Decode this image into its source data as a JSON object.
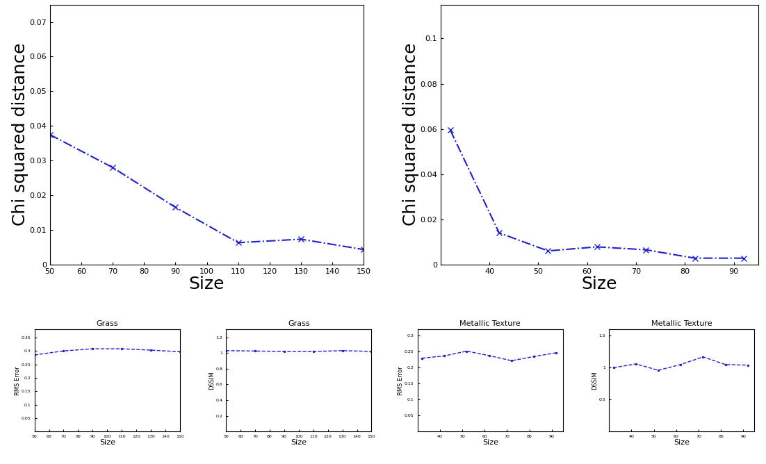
{
  "chart_data": [
    {
      "type": "line",
      "x_label": "Size",
      "y_label": "Chi squared distance",
      "x": [
        50,
        70,
        90,
        110,
        130,
        150
      ],
      "values": [
        0.0375,
        0.028,
        0.0165,
        0.0063,
        0.0073,
        0.0043
      ],
      "xlim": [
        50,
        150
      ],
      "ylim": [
        0,
        0.075
      ],
      "xticks": [
        50,
        60,
        70,
        80,
        90,
        100,
        110,
        120,
        130,
        140,
        150
      ],
      "yticks": [
        0,
        0.01,
        0.02,
        0.03,
        0.04,
        0.05,
        0.06,
        0.07
      ],
      "color": "#1f1fcc",
      "marker": "x",
      "line_style": "dashdot"
    },
    {
      "type": "line",
      "x_label": "Size",
      "y_label": "Chi squared distance",
      "x": [
        32,
        42,
        52,
        62,
        72,
        82,
        92
      ],
      "values": [
        0.0595,
        0.014,
        0.006,
        0.0078,
        0.0065,
        0.0028,
        0.0028
      ],
      "xlim": [
        30,
        95
      ],
      "ylim": [
        0,
        0.115
      ],
      "xticks": [
        40,
        50,
        60,
        70,
        80,
        90
      ],
      "yticks": [
        0,
        0.02,
        0.04,
        0.06,
        0.08,
        0.1
      ],
      "color": "#1f1fcc",
      "marker": "x",
      "line_style": "dashdot"
    },
    {
      "type": "line",
      "title": "Grass",
      "x_label": "Size",
      "y_label": "RMS Error",
      "x": [
        50,
        70,
        90,
        110,
        130,
        150
      ],
      "values": [
        0.285,
        0.3,
        0.308,
        0.308,
        0.303,
        0.297
      ],
      "xlim": [
        50,
        150
      ],
      "ylim": [
        0,
        0.38
      ],
      "xticks": [
        50,
        60,
        70,
        80,
        90,
        100,
        110,
        120,
        130,
        140,
        150
      ],
      "yticks": [
        0.05,
        0.1,
        0.15,
        0.2,
        0.25,
        0.3,
        0.35
      ],
      "color": "#1f1fcc",
      "marker": "point",
      "line_style": "dashed"
    },
    {
      "type": "line",
      "title": "Grass",
      "x_label": "Size",
      "y_label": "DSSIM",
      "x": [
        50,
        70,
        90,
        110,
        130,
        150
      ],
      "values": [
        1.03,
        1.025,
        1.02,
        1.02,
        1.03,
        1.02
      ],
      "xlim": [
        50,
        150
      ],
      "ylim": [
        0,
        1.3
      ],
      "xticks": [
        50,
        60,
        70,
        80,
        90,
        100,
        110,
        120,
        130,
        140,
        150
      ],
      "yticks": [
        0.2,
        0.4,
        0.6,
        0.8,
        1,
        1.2
      ],
      "color": "#1f1fcc",
      "marker": "point",
      "line_style": "dashed"
    },
    {
      "type": "line",
      "title": "Metallic Texture",
      "x_label": "Size",
      "y_label": "RMS Error",
      "x": [
        32,
        42,
        52,
        62,
        72,
        82,
        92
      ],
      "values": [
        0.23,
        0.237,
        0.252,
        0.238,
        0.222,
        0.235,
        0.247
      ],
      "xlim": [
        30,
        95
      ],
      "ylim": [
        0,
        0.32
      ],
      "xticks": [
        40,
        50,
        60,
        70,
        80,
        90
      ],
      "yticks": [
        0.05,
        0.1,
        0.15,
        0.2,
        0.25,
        0.3
      ],
      "color": "#1f1fcc",
      "marker": "point",
      "line_style": "dashed"
    },
    {
      "type": "line",
      "title": "Metallic Texture",
      "x_label": "Size",
      "y_label": "DSSIM",
      "x": [
        32,
        42,
        52,
        62,
        72,
        82,
        92
      ],
      "values": [
        1.0,
        1.06,
        0.96,
        1.05,
        1.17,
        1.05,
        1.04
      ],
      "xlim": [
        30,
        95
      ],
      "ylim": [
        0,
        1.6
      ],
      "xticks": [
        40,
        50,
        60,
        70,
        80,
        90
      ],
      "yticks": [
        0.5,
        1,
        1.5
      ],
      "color": "#1f1fcc",
      "marker": "point",
      "line_style": "dashed"
    }
  ]
}
